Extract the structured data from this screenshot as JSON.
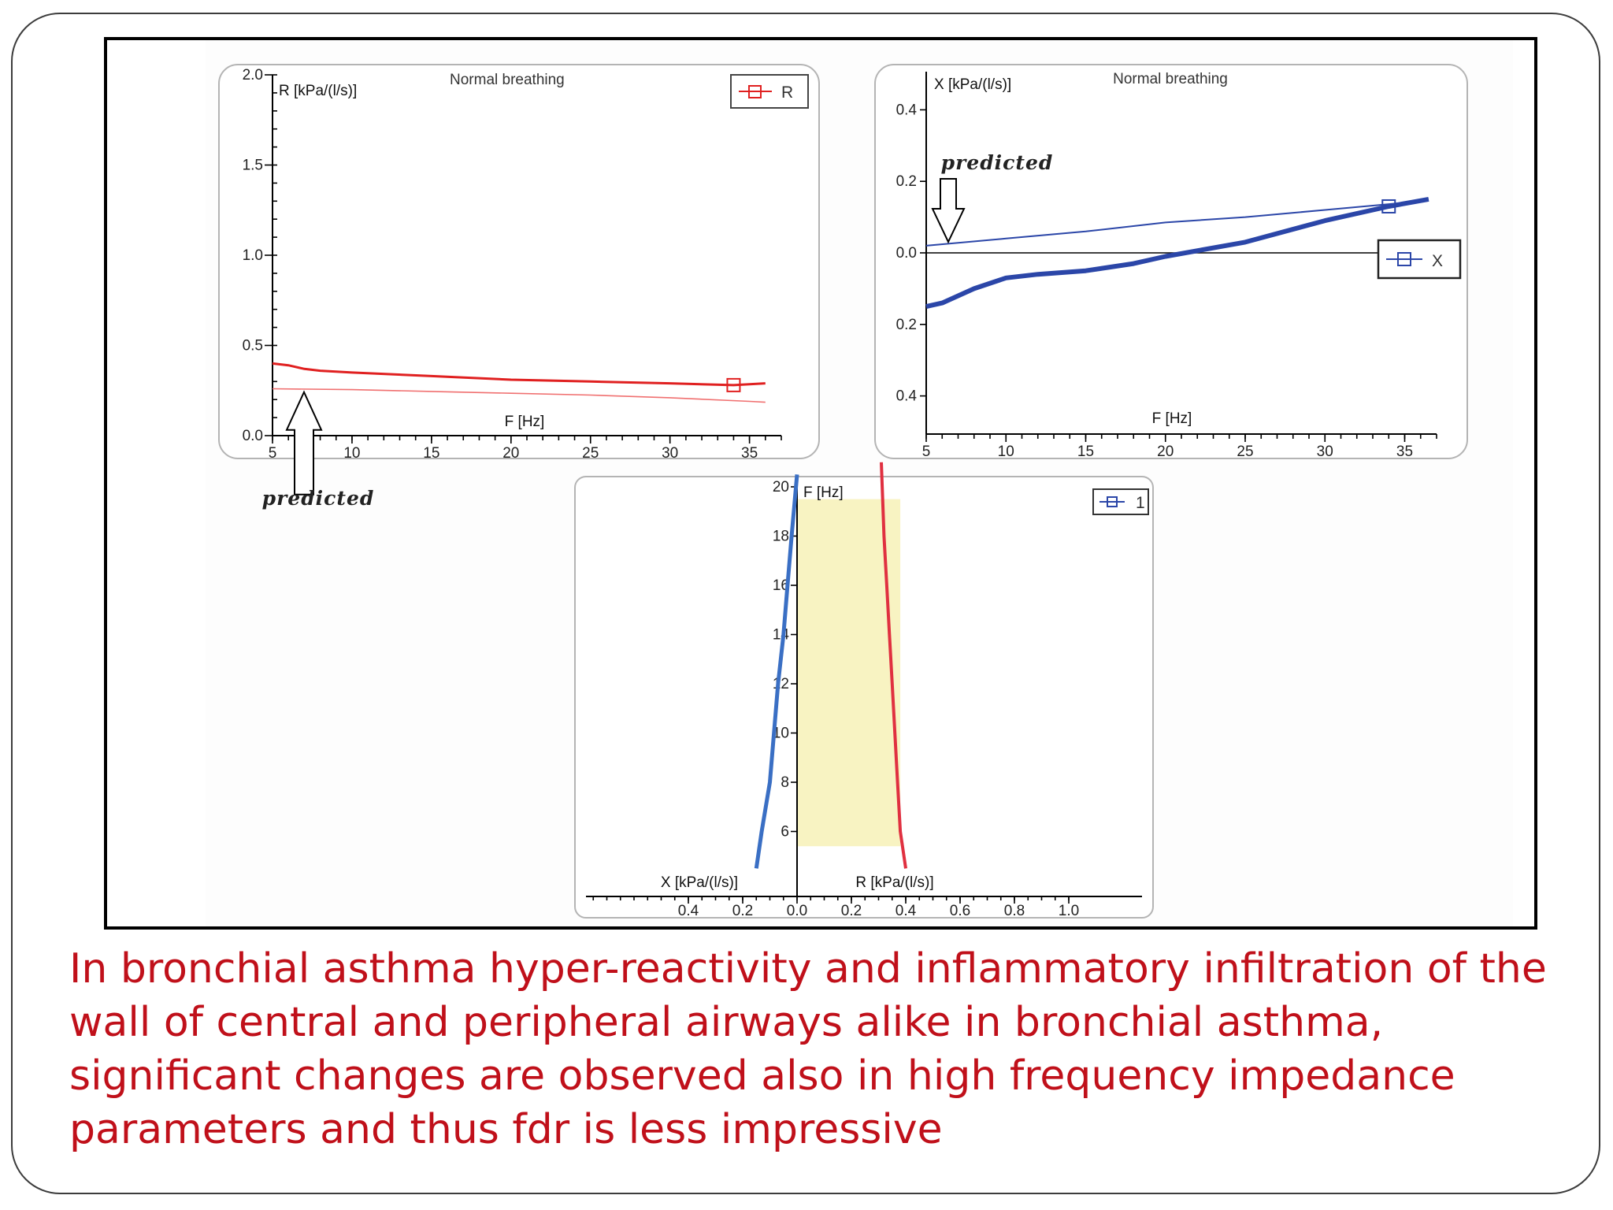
{
  "caption": "In bronchial asthma hyper-reactivity and inflammatory infiltration of the wall of central and peripheral airways alike in bronchial asthma, significant changes are observed also in high frequency impedance parameters and thus fdr is less impressive",
  "chart_data": [
    {
      "type": "line",
      "title": "Normal breathing",
      "ylabel": "R [kPa/(l/s)]",
      "xlabel": "F [Hz]",
      "xlim": [
        5,
        37
      ],
      "ylim": [
        0,
        2.0
      ],
      "x_ticks": [
        "5",
        "10",
        "15",
        "20",
        "25",
        "30",
        "35"
      ],
      "y_ticks": [
        "0.0",
        "0.5",
        "1.0",
        "1.5",
        "2.0"
      ],
      "legend": {
        "label": "R",
        "position": "top-right"
      },
      "color": "#e02020",
      "series": [
        {
          "name": "R",
          "x": [
            5,
            6,
            7,
            8,
            10,
            15,
            20,
            25,
            30,
            34,
            36
          ],
          "y": [
            0.4,
            0.39,
            0.37,
            0.36,
            0.35,
            0.33,
            0.31,
            0.3,
            0.29,
            0.28,
            0.29
          ]
        },
        {
          "x": [
            5,
            10,
            15,
            20,
            25,
            30,
            35,
            36
          ],
          "y": [
            0.26,
            0.255,
            0.245,
            0.235,
            0.225,
            0.21,
            0.19,
            0.185
          ]
        }
      ],
      "annotation": {
        "text": "predicted",
        "x": 7,
        "y": 0.26
      }
    },
    {
      "type": "line",
      "title": "Normal breathing",
      "ylabel": "X [kPa/(l/s)]",
      "xlabel": "F [Hz]",
      "xlim": [
        5,
        37
      ],
      "ylim": [
        -0.5,
        0.5
      ],
      "x_ticks": [
        "5",
        "10",
        "15",
        "20",
        "25",
        "30",
        "35"
      ],
      "y_ticks": [
        "0.4",
        "0.2",
        "0.0",
        "0.2",
        "0.4"
      ],
      "legend": {
        "label": "X",
        "position": "right"
      },
      "color": "#2b46a8",
      "series": [
        {
          "name": "X",
          "x": [
            5,
            6,
            8,
            10,
            12,
            15,
            18,
            20,
            25,
            30,
            34,
            36.5
          ],
          "y": [
            -0.15,
            -0.14,
            -0.1,
            -0.07,
            -0.06,
            -0.05,
            -0.03,
            -0.01,
            0.03,
            0.09,
            0.13,
            0.15
          ]
        },
        {
          "x": [
            5,
            10,
            15,
            20,
            25,
            30,
            35,
            36.5
          ],
          "y": [
            0.02,
            0.04,
            0.06,
            0.085,
            0.1,
            0.12,
            0.14,
            0.15
          ]
        }
      ],
      "annotation": {
        "text": "predicted",
        "x": 6.5,
        "y": 0.03
      }
    },
    {
      "type": "area",
      "ylabel": "F [Hz]",
      "xlabel_left": "X [kPa/(l/s)]",
      "xlabel_right": "R [kPa/(l/s)]",
      "xlim": [
        -0.6,
        1.0
      ],
      "ylim": [
        4,
        20
      ],
      "x_ticks": [
        "0.4",
        "0.2",
        "0.0",
        "0.2",
        "0.4",
        "0.6",
        "0.8",
        "1.0"
      ],
      "y_ticks": [
        "6",
        "8",
        "10",
        "12",
        "14",
        "16",
        "18",
        "20"
      ],
      "legend": {
        "label": "1",
        "position": "top-right"
      },
      "fill_color": "#f8f3c2",
      "series": [
        {
          "name": "X",
          "color": "#3a6fc4",
          "freq": [
            4.5,
            6,
            8,
            10,
            12,
            14,
            16,
            18,
            20.5
          ],
          "value": [
            -0.15,
            -0.13,
            -0.1,
            -0.085,
            -0.07,
            -0.05,
            -0.035,
            -0.02,
            0.0
          ]
        },
        {
          "name": "R",
          "color": "#e03040",
          "freq": [
            4.5,
            6,
            8,
            10,
            12,
            14,
            16,
            18,
            21
          ],
          "value": [
            0.4,
            0.38,
            0.37,
            0.36,
            0.35,
            0.34,
            0.33,
            0.32,
            0.31
          ]
        }
      ],
      "fill_range": {
        "freq": [
          5.4,
          19.5
        ],
        "value": [
          0.0,
          0.38
        ]
      }
    }
  ]
}
